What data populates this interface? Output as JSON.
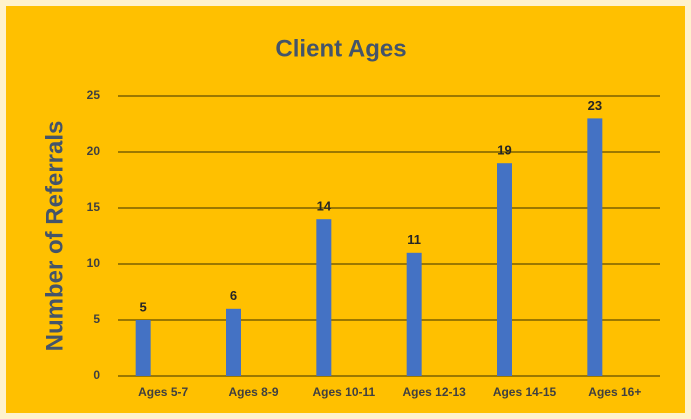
{
  "chart_data": {
    "type": "bar",
    "title": "Client Ages",
    "y_label": "Number of Referrals",
    "categories": [
      "Ages 5-7",
      "Ages 8-9",
      "Ages 10-11",
      "Ages 12-13",
      "Ages 14-15",
      "Ages 16+"
    ],
    "values": [
      5,
      6,
      14,
      11,
      19,
      23
    ],
    "color": "#4472c4",
    "ylim": [
      0,
      25
    ],
    "yticks": [
      0,
      5,
      10,
      15,
      20,
      25
    ],
    "grid": true,
    "data_labels": true
  }
}
